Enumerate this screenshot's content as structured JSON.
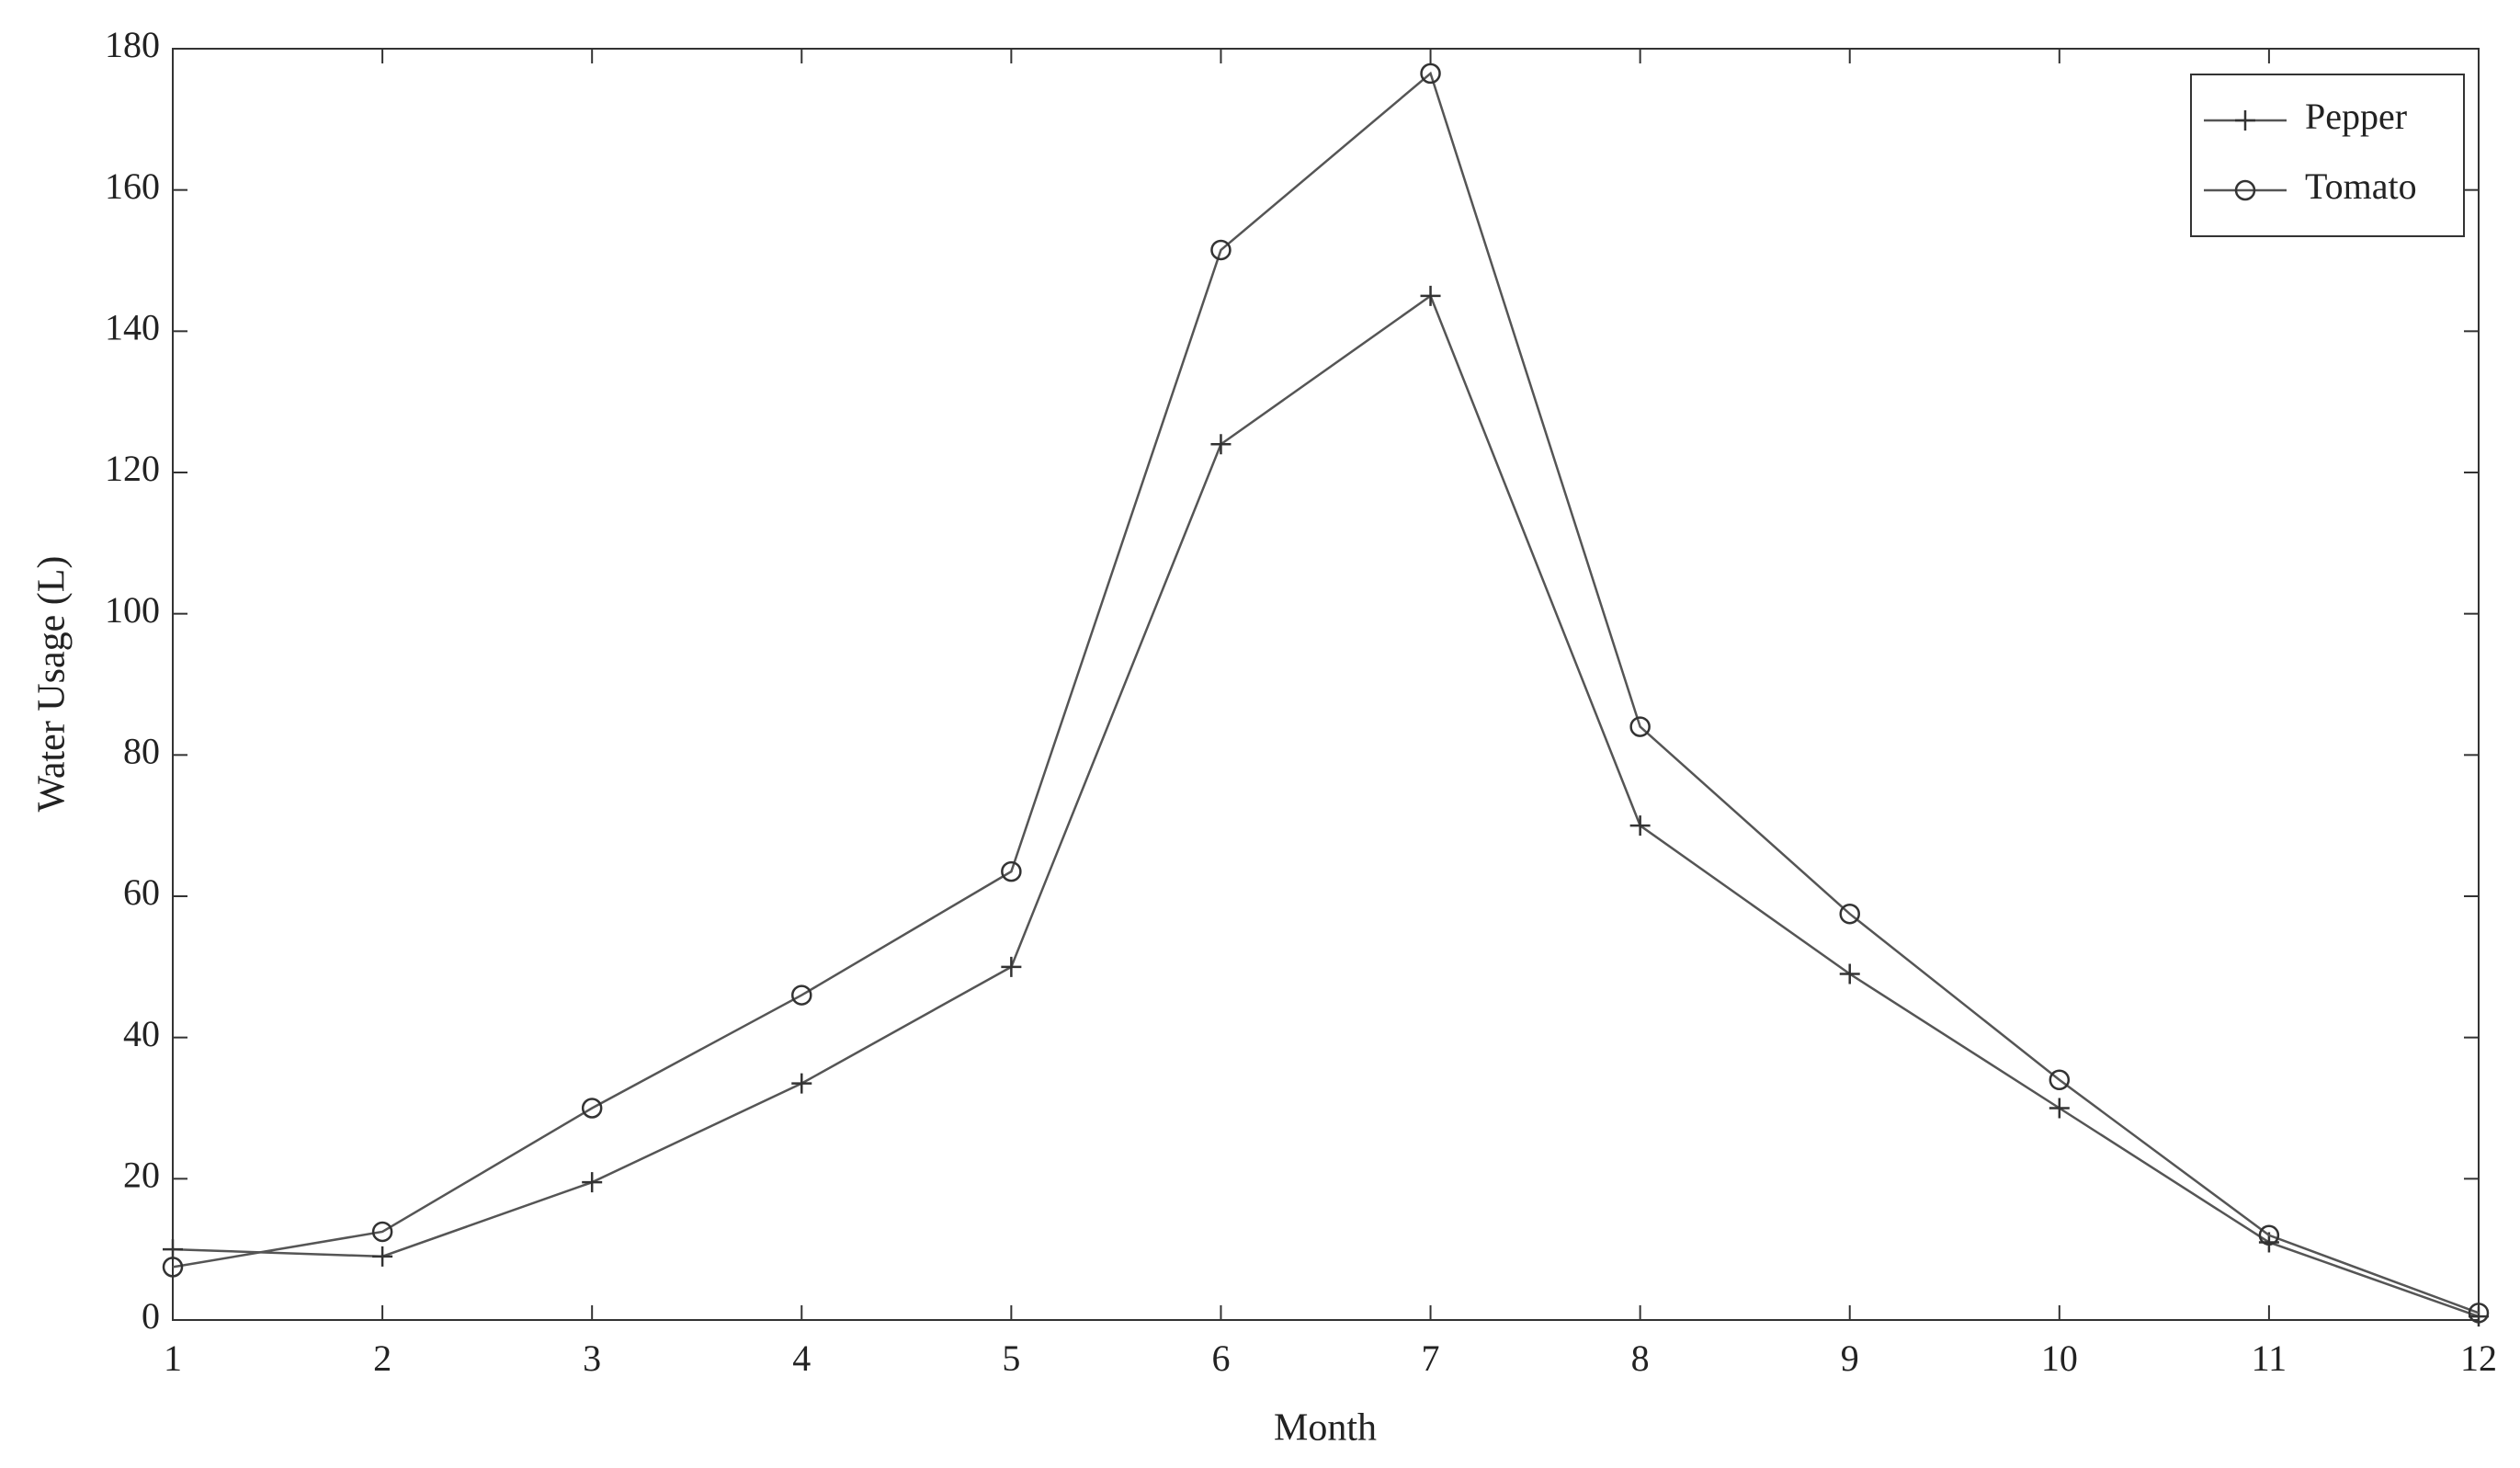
{
  "chart_data": {
    "type": "line",
    "x_label": "Month",
    "y_label": "Water Usage (L)",
    "x": [
      1,
      2,
      3,
      4,
      5,
      6,
      7,
      8,
      9,
      10,
      11,
      12
    ],
    "series": [
      {
        "name": "Pepper",
        "color": "#555555",
        "marker": "+",
        "values": [
          10,
          9,
          19.5,
          33.5,
          50,
          124,
          145,
          70,
          49,
          30,
          11,
          0.5
        ]
      },
      {
        "name": "Tomato",
        "color": "#555555",
        "marker": "o",
        "values": [
          7.5,
          12.5,
          30,
          46,
          63.5,
          151.5,
          176.5,
          84,
          57.5,
          34,
          12,
          1
        ]
      }
    ],
    "xlim": [
      1,
      12
    ],
    "xticks": [
      1,
      2,
      3,
      4,
      5,
      6,
      7,
      8,
      9,
      10,
      11,
      12
    ],
    "ylim": [
      0,
      180
    ],
    "yticks": [
      0,
      20,
      40,
      60,
      80,
      100,
      120,
      140,
      160,
      180
    ],
    "grid": false,
    "legend_position": "upper right"
  }
}
